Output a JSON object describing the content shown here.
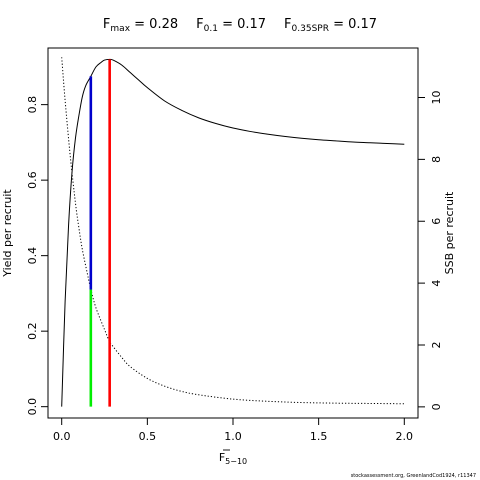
{
  "title": {
    "fmax": {
      "base": "F",
      "sub": "max",
      "value": " = 0.28"
    },
    "f01": {
      "base": "F",
      "sub": "0.1",
      "value": " = 0.17"
    },
    "f35": {
      "base": "F",
      "sub": "0.35SPR",
      "value": " = 0.17"
    }
  },
  "credit": "stockassessment.org, GreenlandCod1924, r11347",
  "chart_data": {
    "type": "line",
    "xlabel": {
      "base": "F",
      "sub": "5−10",
      "overline": true
    },
    "ylabel_left": "Yield per recruit",
    "ylabel_right": "SSB per recruit",
    "xlim": [
      -0.08,
      2.08
    ],
    "ylim_left": [
      -0.03,
      0.95
    ],
    "ylim_right": [
      -0.36,
      11.6
    ],
    "x_ticks": [
      0,
      0.5,
      1,
      1.5,
      2
    ],
    "x_tick_labels": [
      "0.0",
      "0.5",
      "1.0",
      "1.5",
      "2.0"
    ],
    "y_left_ticks": [
      0,
      0.2,
      0.4,
      0.6,
      0.8
    ],
    "y_left_tick_labels": [
      "0.0",
      "0.2",
      "0.4",
      "0.6",
      "0.8"
    ],
    "y_right_ticks": [
      0,
      2,
      4,
      6,
      8,
      10
    ],
    "y_right_tick_labels": [
      "0",
      "2",
      "4",
      "6",
      "8",
      "10"
    ],
    "grid": false,
    "series": [
      {
        "axis": "left",
        "style": "solid",
        "color": "#000000",
        "x": [
          0,
          0.02,
          0.04,
          0.06,
          0.08,
          0.1,
          0.12,
          0.14,
          0.17,
          0.2,
          0.23,
          0.25,
          0.28,
          0.3,
          0.35,
          0.4,
          0.45,
          0.5,
          0.6,
          0.7,
          0.8,
          0.9,
          1.0,
          1.1,
          1.2,
          1.3,
          1.4,
          1.5,
          1.6,
          1.7,
          1.8,
          1.9,
          2.0
        ],
        "y": [
          0.0,
          0.28,
          0.48,
          0.62,
          0.71,
          0.77,
          0.82,
          0.85,
          0.875,
          0.9,
          0.912,
          0.918,
          0.92,
          0.918,
          0.905,
          0.885,
          0.865,
          0.845,
          0.81,
          0.785,
          0.765,
          0.75,
          0.738,
          0.729,
          0.722,
          0.716,
          0.711,
          0.707,
          0.704,
          0.701,
          0.699,
          0.697,
          0.695
        ]
      },
      {
        "axis": "right",
        "style": "dotted",
        "color": "#000000",
        "x": [
          0,
          0.02,
          0.05,
          0.08,
          0.1,
          0.12,
          0.15,
          0.17,
          0.2,
          0.25,
          0.28,
          0.3,
          0.35,
          0.4,
          0.5,
          0.6,
          0.7,
          0.8,
          1.0,
          1.2,
          1.4,
          1.6,
          1.8,
          2.0
        ],
        "y": [
          11.3,
          9.9,
          8.1,
          6.6,
          5.8,
          5.1,
          4.3,
          3.8,
          3.2,
          2.5,
          2.1,
          1.95,
          1.6,
          1.3,
          0.92,
          0.67,
          0.5,
          0.39,
          0.25,
          0.18,
          0.14,
          0.12,
          0.11,
          0.1
        ]
      }
    ],
    "reference_lines": [
      {
        "name": "fmax",
        "x": 0.28,
        "y_bottom": 0,
        "y_top": 0.92,
        "color": "#ff0000"
      },
      {
        "name": "f01",
        "x": 0.17,
        "y_bottom": 0.31,
        "y_top": 0.875,
        "color": "#0000cc"
      },
      {
        "name": "f35spr",
        "x": 0.17,
        "y_bottom": 0,
        "y_top": 0.31,
        "color": "#00ee00"
      }
    ]
  }
}
